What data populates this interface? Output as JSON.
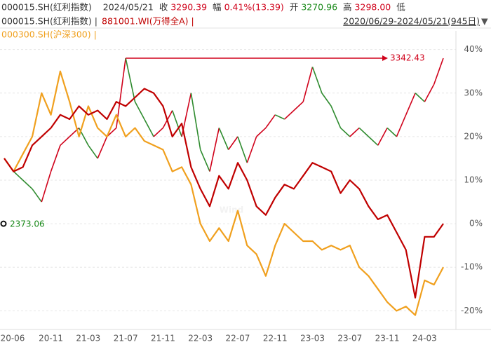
{
  "header": {
    "row1": [
      {
        "text": "000015.SH(红利指数)",
        "color": "#333333"
      },
      {
        "text": "2024/05/21",
        "color": "#333333"
      },
      {
        "text": "收",
        "color": "#333333"
      },
      {
        "text": "3290.39",
        "color": "#d0021b"
      },
      {
        "text": "幅",
        "color": "#333333"
      },
      {
        "text": "0.41%(13.39)",
        "color": "#d0021b"
      },
      {
        "text": "开",
        "color": "#333333"
      },
      {
        "text": "3270.96",
        "color": "#1a8a1a"
      },
      {
        "text": "高",
        "color": "#333333"
      },
      {
        "text": "3298.00",
        "color": "#d0021b"
      },
      {
        "text": "低",
        "color": "#333333"
      }
    ],
    "separator": "|",
    "range": "2020/06/29-2024/05/21(945日)",
    "dropdown": "▼"
  },
  "chart_data": {
    "type": "line",
    "watermark": "Wind",
    "categories": [
      "20-06",
      null,
      null,
      null,
      null,
      "20-11",
      null,
      null,
      null,
      "21-03",
      null,
      null,
      null,
      "21-07",
      null,
      null,
      null,
      "21-11",
      null,
      null,
      null,
      "22-03",
      null,
      null,
      null,
      "22-07",
      null,
      null,
      null,
      "22-11",
      null,
      null,
      null,
      "23-03",
      null,
      null,
      null,
      "23-07",
      null,
      null,
      null,
      "23-11",
      null,
      null,
      null,
      "24-03",
      null,
      null
    ],
    "series": [
      {
        "name": "000015.SH(红利指数)",
        "color": "#333333",
        "up_color": "#d0021b",
        "down_color": "#2e8b2e",
        "values": [
          15,
          12,
          10,
          8,
          5,
          12,
          18,
          20,
          22,
          18,
          15,
          20,
          22,
          38,
          28,
          24,
          20,
          22,
          26,
          20,
          30,
          17,
          12,
          22,
          17,
          20,
          14,
          20,
          22,
          25,
          24,
          26,
          28,
          36,
          30,
          27,
          22,
          20,
          22,
          20,
          18,
          22,
          20,
          25,
          30,
          28,
          32,
          38
        ]
      },
      {
        "name": "881001.WI(万得全A)",
        "color": "#c00000",
        "values": [
          15,
          12,
          13,
          18,
          20,
          22,
          25,
          24,
          27,
          25,
          26,
          24,
          28,
          27,
          29,
          31,
          30,
          27,
          20,
          23,
          13,
          8,
          4,
          11,
          8,
          14,
          10,
          4,
          2,
          6,
          9,
          8,
          11,
          14,
          13,
          12,
          7,
          10,
          8,
          4,
          1,
          2,
          -2,
          -6,
          -17,
          -3,
          -3,
          0
        ]
      },
      {
        "name": "000300.SH(沪深300)",
        "color": "#f0a01e",
        "values": [
          15,
          12,
          16,
          20,
          30,
          25,
          35,
          28,
          20,
          27,
          22,
          20,
          25,
          20,
          22,
          19,
          18,
          17,
          12,
          13,
          9,
          0,
          -4,
          -1,
          -4,
          3,
          -5,
          -7,
          -12,
          -5,
          0,
          -2,
          -4,
          -4,
          -6,
          -5,
          -6,
          -5,
          -10,
          -12,
          -15,
          -18,
          -20,
          -19,
          -21,
          -13,
          -14,
          -10
        ]
      }
    ],
    "annotations": {
      "max": "3342.43",
      "start": "2373.06"
    },
    "ylim": [
      -23,
      43
    ],
    "yticks": [
      {
        "value": 40,
        "label": "40%"
      },
      {
        "value": 30,
        "label": "30%"
      },
      {
        "value": 20,
        "label": "20%"
      },
      {
        "value": 10,
        "label": "10%"
      },
      {
        "value": 0,
        "label": "0%"
      },
      {
        "value": -10,
        "label": "-10%"
      },
      {
        "value": -20,
        "label": "-20%"
      }
    ],
    "grid": true
  }
}
